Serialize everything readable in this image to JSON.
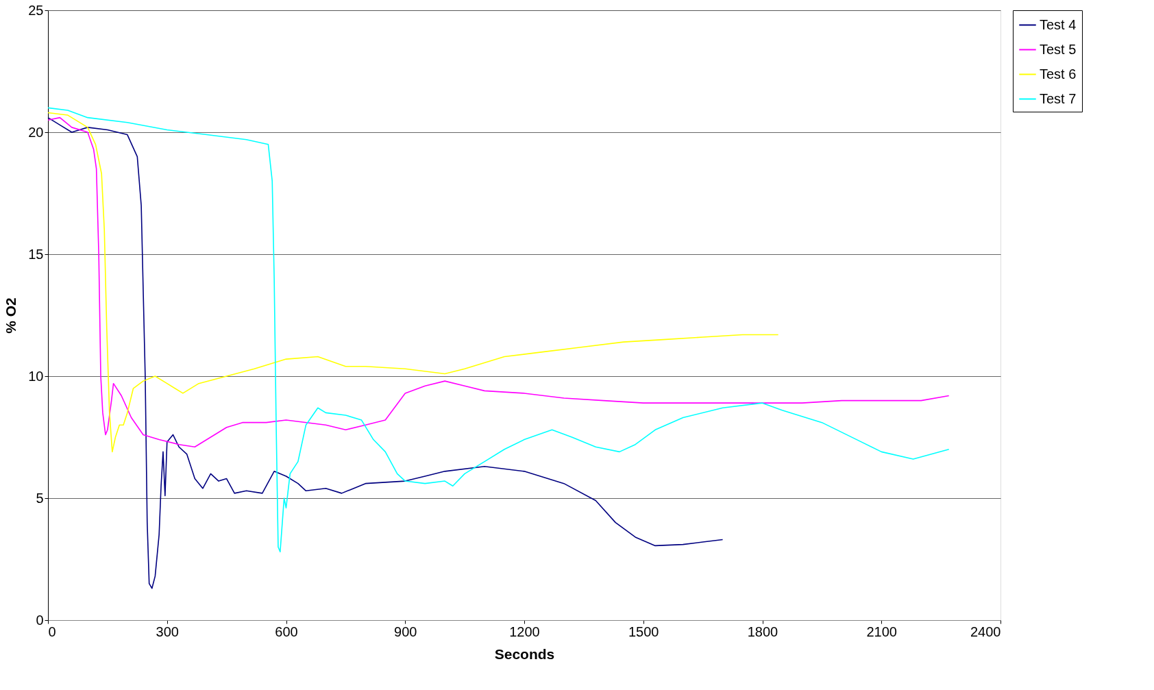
{
  "chart_data": {
    "type": "line",
    "xlabel": "Seconds",
    "ylabel": "% O2",
    "xlim": [
      0,
      2400
    ],
    "xticks": [
      0,
      300,
      600,
      900,
      1200,
      1500,
      1800,
      2100,
      2400
    ],
    "ylim": [
      0,
      25
    ],
    "yticks": [
      0,
      5,
      10,
      15,
      20,
      25
    ],
    "grid": "y",
    "legend": "right",
    "line_style": "solid",
    "marker": "none",
    "series": [
      {
        "name": "Test 4",
        "color": "#000080",
        "x": [
          0,
          30,
          60,
          100,
          150,
          200,
          225,
          235,
          245,
          250,
          255,
          262,
          270,
          280,
          285,
          290,
          295,
          300,
          315,
          330,
          350,
          370,
          390,
          410,
          430,
          450,
          470,
          500,
          540,
          570,
          600,
          630,
          650,
          700,
          740,
          800,
          900,
          950,
          1000,
          1100,
          1200,
          1300,
          1380,
          1430,
          1480,
          1530,
          1600,
          1650,
          1700
        ],
        "values": [
          20.6,
          20.3,
          20.0,
          20.2,
          20.1,
          19.9,
          19.0,
          17,
          10,
          4,
          1.5,
          1.3,
          1.8,
          3.5,
          5.5,
          6.9,
          5.1,
          7.3,
          7.6,
          7.1,
          6.8,
          5.8,
          5.4,
          6.0,
          5.7,
          5.8,
          5.2,
          5.3,
          5.2,
          6.1,
          5.9,
          5.6,
          5.3,
          5.4,
          5.2,
          5.6,
          5.7,
          5.9,
          6.1,
          6.3,
          6.1,
          5.6,
          4.9,
          4.0,
          3.4,
          3.05,
          3.1,
          3.2,
          3.3
        ]
      },
      {
        "name": "Test 5",
        "color": "#ff00ff",
        "x": [
          0,
          30,
          60,
          100,
          115,
          122,
          128,
          133,
          138,
          145,
          150,
          160,
          165,
          185,
          210,
          240,
          280,
          330,
          370,
          410,
          450,
          490,
          550,
          600,
          700,
          750,
          800,
          850,
          900,
          950,
          1000,
          1050,
          1100,
          1200,
          1300,
          1400,
          1500,
          1600,
          1700,
          1800,
          1900,
          2000,
          2100,
          2200,
          2270
        ],
        "values": [
          20.5,
          20.6,
          20.2,
          20.0,
          19.3,
          18.5,
          15,
          10,
          8.5,
          7.6,
          7.8,
          9.0,
          9.7,
          9.2,
          8.3,
          7.6,
          7.4,
          7.2,
          7.1,
          7.5,
          7.9,
          8.1,
          8.1,
          8.2,
          8.0,
          7.8,
          8.0,
          8.2,
          9.3,
          9.6,
          9.8,
          9.6,
          9.4,
          9.3,
          9.1,
          9.0,
          8.9,
          8.9,
          8.9,
          8.9,
          8.9,
          9.0,
          9.0,
          9.0,
          9.2
        ]
      },
      {
        "name": "Test 6",
        "color": "#ffff00",
        "x": [
          0,
          50,
          100,
          120,
          135,
          142,
          148,
          155,
          162,
          170,
          180,
          190,
          200,
          215,
          240,
          270,
          300,
          340,
          380,
          450,
          520,
          600,
          680,
          750,
          800,
          900,
          1000,
          1050,
          1150,
          1250,
          1350,
          1450,
          1550,
          1650,
          1750,
          1840
        ],
        "values": [
          20.8,
          20.7,
          20.2,
          19.5,
          18.3,
          16,
          12,
          8.5,
          6.9,
          7.5,
          8.0,
          8.0,
          8.5,
          9.5,
          9.8,
          10.0,
          9.7,
          9.3,
          9.7,
          10.0,
          10.3,
          10.7,
          10.8,
          10.4,
          10.4,
          10.3,
          10.1,
          10.3,
          10.8,
          11.0,
          11.2,
          11.4,
          11.5,
          11.6,
          11.7,
          11.7
        ]
      },
      {
        "name": "Test 7",
        "color": "#00ffff",
        "x": [
          0,
          50,
          100,
          200,
          300,
          400,
          500,
          555,
          565,
          570,
          575,
          580,
          585,
          595,
          600,
          610,
          630,
          650,
          680,
          700,
          750,
          790,
          820,
          850,
          880,
          900,
          950,
          1000,
          1020,
          1050,
          1100,
          1150,
          1200,
          1270,
          1320,
          1380,
          1440,
          1480,
          1530,
          1600,
          1700,
          1800,
          1850,
          1950,
          2050,
          2100,
          2180,
          2270
        ],
        "values": [
          21.0,
          20.9,
          20.6,
          20.4,
          20.1,
          19.9,
          19.7,
          19.5,
          18,
          14,
          8,
          3,
          2.8,
          5,
          4.6,
          6,
          6.5,
          8.0,
          8.7,
          8.5,
          8.4,
          8.2,
          7.4,
          6.9,
          6.0,
          5.7,
          5.6,
          5.7,
          5.5,
          6.0,
          6.5,
          7.0,
          7.4,
          7.8,
          7.5,
          7.1,
          6.9,
          7.2,
          7.8,
          8.3,
          8.7,
          8.9,
          8.6,
          8.1,
          7.3,
          6.9,
          6.6,
          7.0
        ]
      }
    ]
  }
}
